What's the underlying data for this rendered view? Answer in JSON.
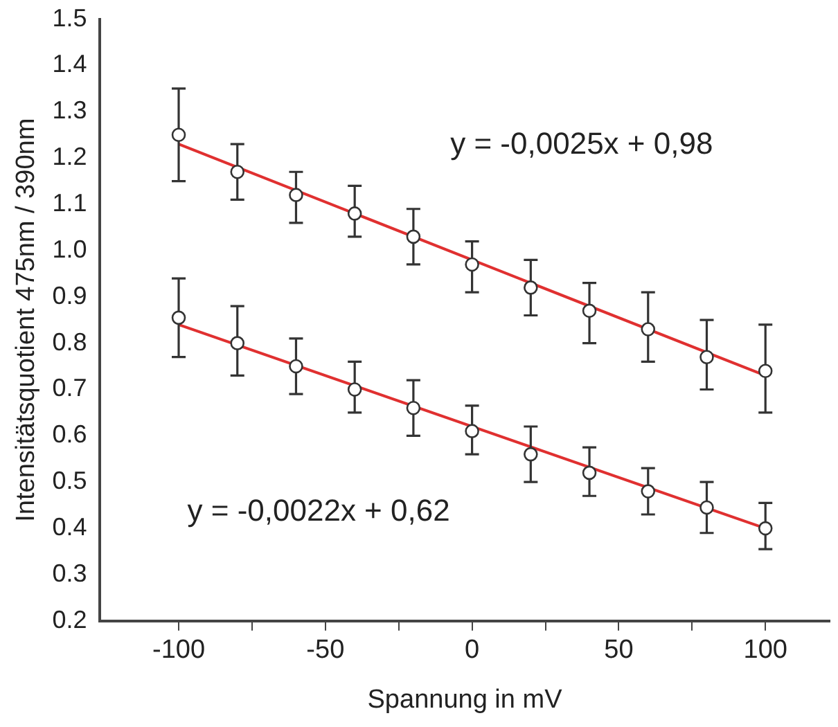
{
  "chart_data": {
    "type": "scatter",
    "xlabel": "Spannung in mV",
    "ylabel": "Intensitätsquotient 475nm / 390nm",
    "xlim": [
      -127,
      122
    ],
    "ylim": [
      0.2,
      1.5
    ],
    "xticks": [
      -100,
      {
        "value": -75,
        "label": null
      },
      -50,
      {
        "value": -25,
        "label": null
      },
      0,
      {
        "value": 25,
        "label": null
      },
      50,
      {
        "value": 75,
        "label": null
      },
      100
    ],
    "yticks": [
      0.2,
      0.3,
      0.4,
      0.5,
      0.6,
      0.7,
      0.8,
      0.9,
      {
        "value": 1,
        "label": "1.0"
      },
      1.1,
      1.2,
      1.3,
      1.4,
      1.5
    ],
    "grid": false,
    "legend": false,
    "marker": "circle",
    "series": [
      {
        "color": "#333333",
        "x": [
          -100,
          -80,
          -60,
          -40,
          -20,
          0,
          20,
          40,
          60,
          80,
          100
        ],
        "values": [
          1.25,
          1.17,
          1.12,
          1.08,
          1.03,
          0.97,
          0.92,
          0.87,
          0.83,
          0.77,
          0.74
        ],
        "errors": [
          [
            1.15,
            1.35
          ],
          [
            1.11,
            1.23
          ],
          [
            1.06,
            1.17
          ],
          [
            1.03,
            1.14
          ],
          [
            0.97,
            1.09
          ],
          [
            0.91,
            1.02
          ],
          [
            0.86,
            0.98
          ],
          [
            0.8,
            0.93
          ],
          [
            0.76,
            0.91
          ],
          [
            0.7,
            0.85
          ],
          [
            0.65,
            0.84
          ]
        ]
      },
      {
        "color": "#333333",
        "x": [
          -100,
          -80,
          -60,
          -40,
          -20,
          0,
          20,
          40,
          60,
          80,
          100
        ],
        "values": [
          0.855,
          0.8,
          0.75,
          0.7,
          0.66,
          0.61,
          0.56,
          0.52,
          0.48,
          0.445,
          0.4
        ],
        "errors": [
          [
            0.77,
            0.94
          ],
          [
            0.73,
            0.88
          ],
          [
            0.69,
            0.81
          ],
          [
            0.65,
            0.76
          ],
          [
            0.6,
            0.72
          ],
          [
            0.56,
            0.665
          ],
          [
            0.5,
            0.62
          ],
          [
            0.47,
            0.575
          ],
          [
            0.43,
            0.53
          ],
          [
            0.39,
            0.5
          ],
          [
            0.355,
            0.455
          ]
        ]
      },
      {
        "type": "line",
        "color": "#e03030",
        "marker": "none",
        "x": [
          -100,
          100
        ],
        "values": [
          1.23,
          0.73
        ]
      },
      {
        "type": "line",
        "color": "#e03030",
        "marker": "none",
        "x": [
          -100,
          100
        ],
        "values": [
          0.84,
          0.4
        ]
      }
    ],
    "annotations": [
      "y = -0,0025x + 0,98",
      "y = -0,0022x + 0,62"
    ]
  }
}
